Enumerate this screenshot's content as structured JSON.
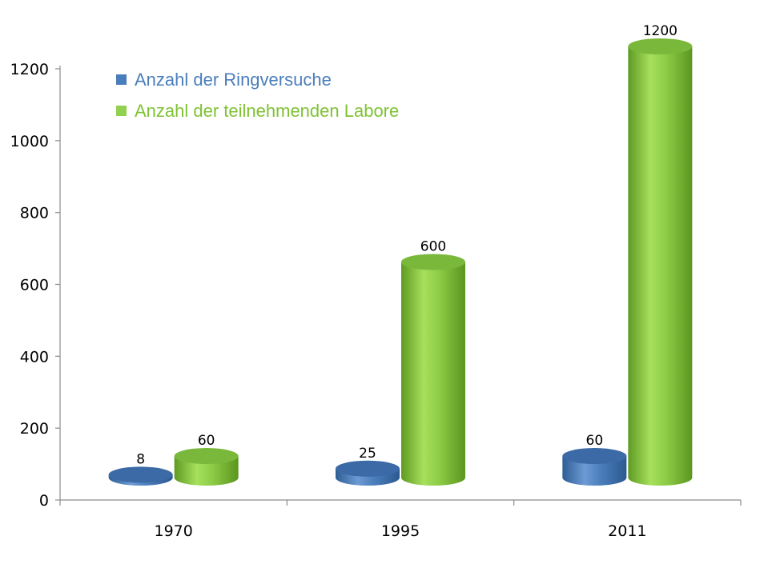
{
  "chart_data": {
    "type": "bar",
    "style": "3d-cylinder",
    "categories": [
      "1970",
      "1995",
      "2011"
    ],
    "series": [
      {
        "name": "Anzahl der Ringversuche",
        "values": [
          8,
          25,
          60
        ],
        "color": "#4a7ebb"
      },
      {
        "name": "Anzahl der teilnehmenden Labore",
        "values": [
          60,
          600,
          1200
        ],
        "color": "#92d050"
      }
    ],
    "data_labels": [
      [
        "8",
        "25",
        "60"
      ],
      [
        "60",
        "600",
        "1200"
      ]
    ],
    "yticks": [
      "0",
      "200",
      "400",
      "600",
      "800",
      "1000",
      "1200"
    ],
    "ylim": [
      0,
      1200
    ],
    "grid": false,
    "legend": "top-left"
  }
}
